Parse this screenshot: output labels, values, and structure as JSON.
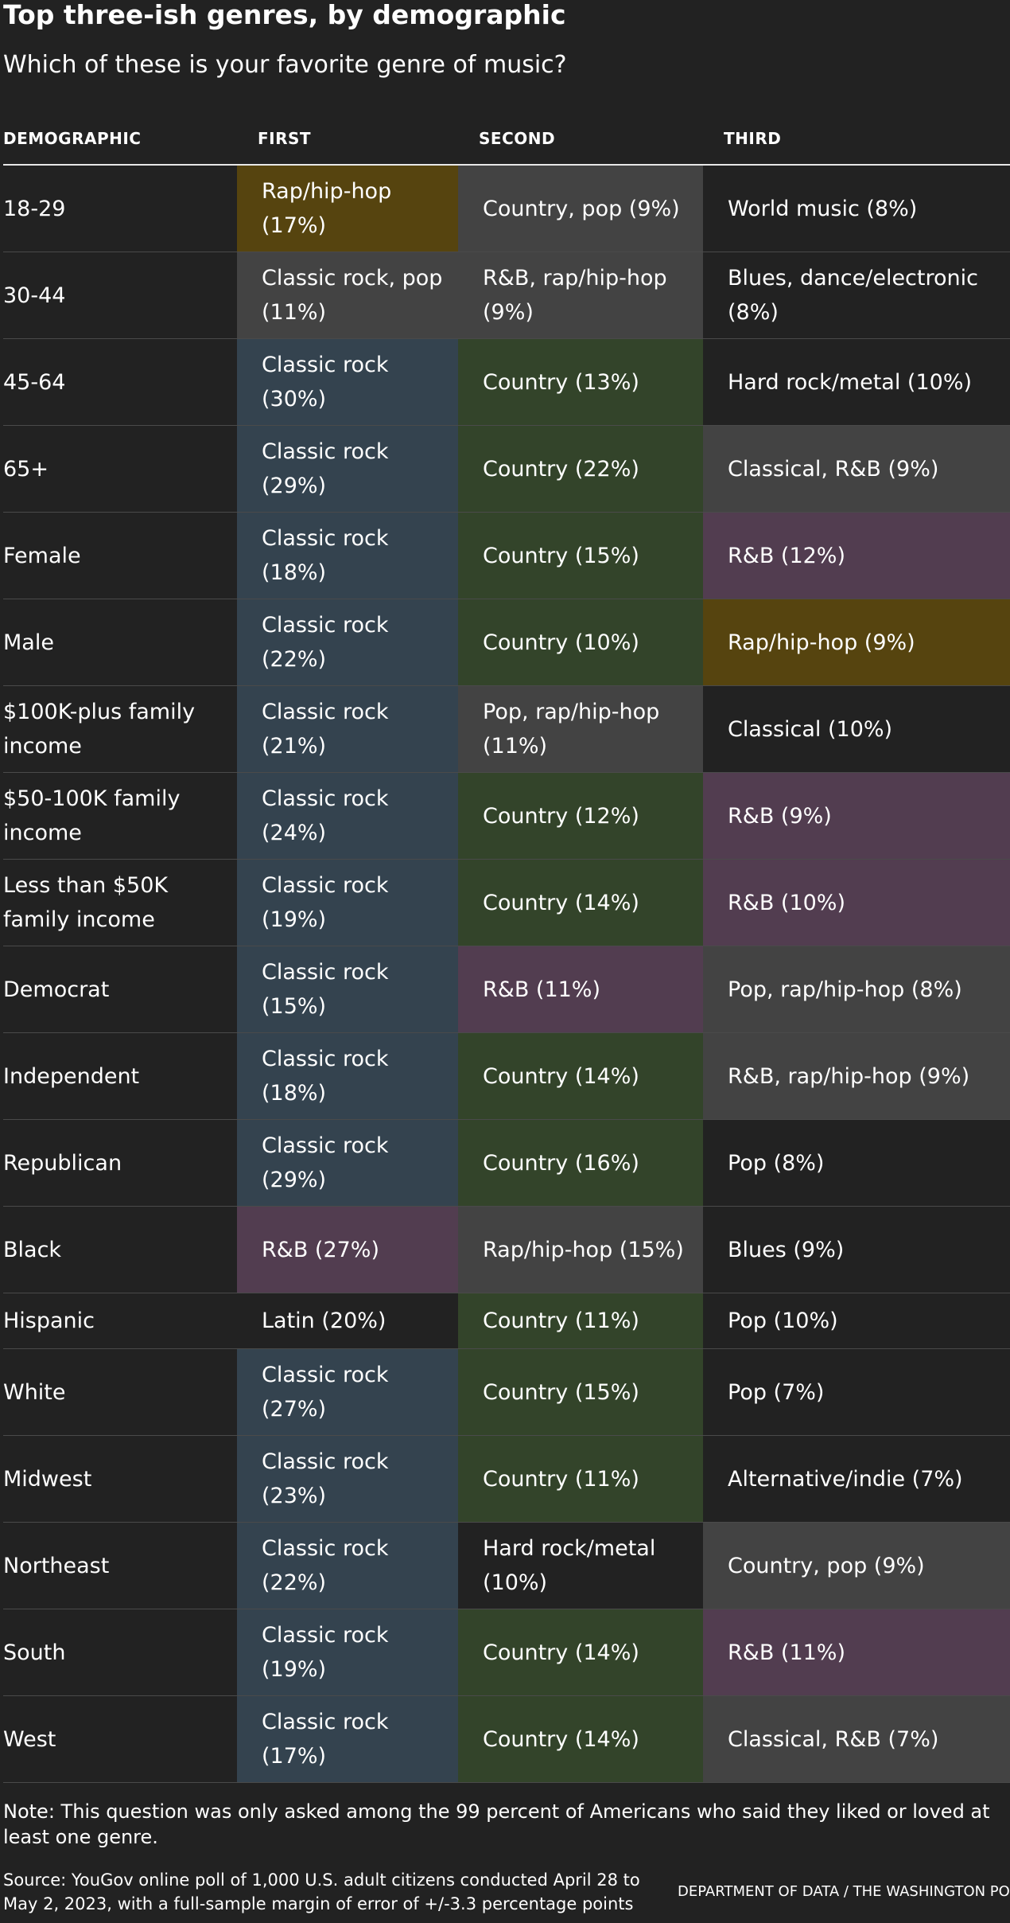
{
  "title": "Top three-ish genres, by demographic",
  "subtitle": "Which of these is your favorite genre of music?",
  "table": {
    "headers": [
      "DEMOGRAPHIC",
      "FIRST",
      "SECOND",
      "THIRD"
    ],
    "colors": {
      "classic": "#34434f",
      "country": "#33442a",
      "rnb": "#523d50",
      "rap": "#56440f",
      "gray": "#434343",
      "dark": "#222222"
    },
    "rows": [
      {
        "demographic": "18-29",
        "first": "Rap/hip-hop (17%)",
        "second": "Country, pop (9%)",
        "third": "World music (8%)"
      },
      {
        "demographic": "30-44",
        "first": "Classic rock, pop (11%)",
        "second": "R&B, rap/hip-hop (9%)",
        "third": "Blues, dance/electronic (8%)"
      },
      {
        "demographic": "45-64",
        "first": "Classic rock (30%)",
        "second": "Country (13%)",
        "third": "Hard rock/metal (10%)"
      },
      {
        "demographic": "65+",
        "first": "Classic rock (29%)",
        "second": "Country (22%)",
        "third": "Classical, R&B (9%)"
      },
      {
        "demographic": "Female",
        "first": "Classic rock (18%)",
        "second": "Country (15%)",
        "third": "R&B (12%)"
      },
      {
        "demographic": "Male",
        "first": "Classic rock (22%)",
        "second": "Country (10%)",
        "third": "Rap/hip-hop (9%)"
      },
      {
        "demographic": "$100K-plus family income",
        "first": "Classic rock (21%)",
        "second": "Pop, rap/hip-hop (11%)",
        "third": "Classical (10%)"
      },
      {
        "demographic": "$50-100K family income",
        "first": "Classic rock (24%)",
        "second": "Country (12%)",
        "third": "R&B (9%)"
      },
      {
        "demographic": "Less than $50K family income",
        "first": "Classic rock (19%)",
        "second": "Country (14%)",
        "third": "R&B (10%)"
      },
      {
        "demographic": "Democrat",
        "first": "Classic rock (15%)",
        "second": "R&B (11%)",
        "third": "Pop, rap/hip-hop (8%)"
      },
      {
        "demographic": "Independent",
        "first": "Classic rock (18%)",
        "second": "Country (14%)",
        "third": "R&B, rap/hip-hop (9%)"
      },
      {
        "demographic": "Republican",
        "first": "Classic rock (29%)",
        "second": "Country (16%)",
        "third": "Pop (8%)"
      },
      {
        "demographic": "Black",
        "first": "R&B (27%)",
        "second": "Rap/hip-hop (15%)",
        "third": "Blues (9%)"
      },
      {
        "demographic": "Hispanic",
        "first": "Latin (20%)",
        "second": "Country (11%)",
        "third": "Pop (10%)"
      },
      {
        "demographic": "White",
        "first": "Classic rock (27%)",
        "second": "Country (15%)",
        "third": "Pop (7%)"
      },
      {
        "demographic": "Midwest",
        "first": "Classic rock (23%)",
        "second": "Country (11%)",
        "third": "Alternative/indie (7%)"
      },
      {
        "demographic": "Northeast",
        "first": "Classic rock (22%)",
        "second": "Hard rock/metal (10%)",
        "third": "Country, pop (9%)"
      },
      {
        "demographic": "South",
        "first": "Classic rock (19%)",
        "second": "Country (14%)",
        "third": "R&B (11%)"
      },
      {
        "demographic": "West",
        "first": "Classic rock (17%)",
        "second": "Country (14%)",
        "third": "Classical, R&B (7%)"
      }
    ]
  },
  "note": "Note: This question was only asked among the 99 percent of Americans who said they liked or loved at least one genre.",
  "source": "Source: YouGov online poll of 1,000 U.S. adult citizens conducted April 28 to May 2, 2023, with a full-sample margin of error of +/-3.3 percentage points",
  "credit": "DEPARTMENT OF DATA / THE WASHINGTON POST"
}
